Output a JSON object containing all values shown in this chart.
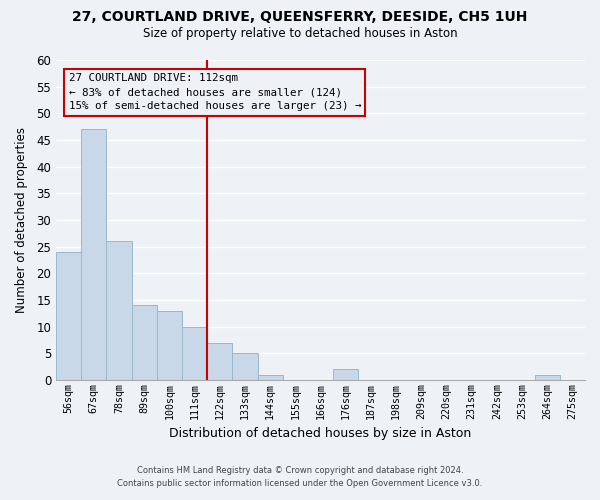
{
  "title": "27, COURTLAND DRIVE, QUEENSFERRY, DEESIDE, CH5 1UH",
  "subtitle": "Size of property relative to detached houses in Aston",
  "xlabel": "Distribution of detached houses by size in Aston",
  "ylabel": "Number of detached properties",
  "bin_labels": [
    "56sqm",
    "67sqm",
    "78sqm",
    "89sqm",
    "100sqm",
    "111sqm",
    "122sqm",
    "133sqm",
    "144sqm",
    "155sqm",
    "166sqm",
    "176sqm",
    "187sqm",
    "198sqm",
    "209sqm",
    "220sqm",
    "231sqm",
    "242sqm",
    "253sqm",
    "264sqm",
    "275sqm"
  ],
  "bar_values": [
    24,
    47,
    26,
    14,
    13,
    10,
    7,
    5,
    1,
    0,
    0,
    2,
    0,
    0,
    0,
    0,
    0,
    0,
    0,
    1,
    0
  ],
  "bar_color": "#c8d8e8",
  "bar_edgecolor": "#9ab8cc",
  "vline_x_index": 5,
  "vline_color": "#cc0000",
  "ylim": [
    0,
    60
  ],
  "yticks": [
    0,
    5,
    10,
    15,
    20,
    25,
    30,
    35,
    40,
    45,
    50,
    55,
    60
  ],
  "annotation_title": "27 COURTLAND DRIVE: 112sqm",
  "annotation_line1": "← 83% of detached houses are smaller (124)",
  "annotation_line2": "15% of semi-detached houses are larger (23) →",
  "footer_line1": "Contains HM Land Registry data © Crown copyright and database right 2024.",
  "footer_line2": "Contains public sector information licensed under the Open Government Licence v3.0.",
  "bg_color": "#eef2f6",
  "grid_color": "#ffffff",
  "plot_bg_color": "#eef2f6"
}
